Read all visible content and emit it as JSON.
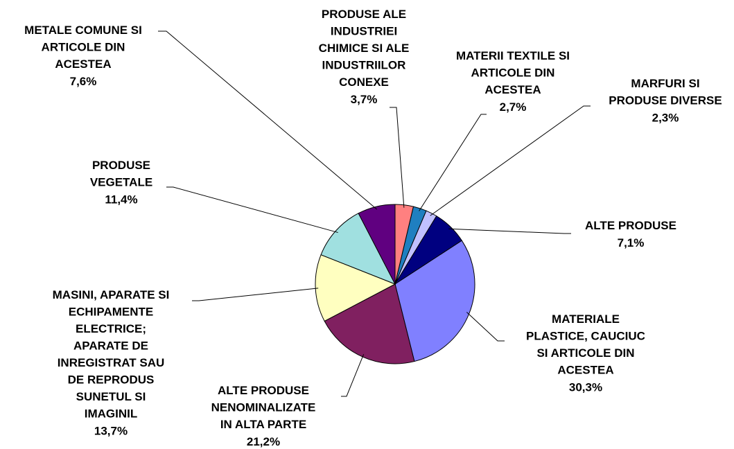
{
  "chart_data": {
    "type": "pie",
    "categories": [
      "PRODUSE ALE\nINDUSTRIEI\nCHIMICE SI ALE\nINDUSTRIILOR\nCONEXE",
      "MATERII TEXTILE SI\nARTICOLE DIN\nACESTEA",
      "MARFURI SI\nPRODUSE DIVERSE",
      "ALTE PRODUSE",
      "MATERIALE\nPLASTICE, CAUCIUC\nSI ARTICOLE DIN\nACESTEA",
      "ALTE PRODUSE\nNENOMINALIZATE\nIN ALTA PARTE",
      "MASINI, APARATE SI\nECHIPAMENTE\nELECTRICE;\nAPARATE DE\nINREGISTRAT SAU\nDE REPRODUS\nSUNETUL SI\nIMAGINIL",
      "PRODUSE\nVEGETALE",
      "METALE COMUNE SI\nARTICOLE DIN\nACESTEA"
    ],
    "values": [
      3.7,
      2.7,
      2.3,
      7.1,
      30.3,
      21.2,
      13.7,
      11.4,
      7.6
    ],
    "value_labels": [
      "3,7%",
      "2,7%",
      "2,3%",
      "7,1%",
      "30,3%",
      "21,2%",
      "13,7%",
      "11,4%",
      "7,6%"
    ],
    "colors": [
      "#ff8080",
      "#1f7fc0",
      "#c0c0ff",
      "#000080",
      "#8080ff",
      "#802060",
      "#ffffc0",
      "#a0e0e0",
      "#600080"
    ]
  }
}
